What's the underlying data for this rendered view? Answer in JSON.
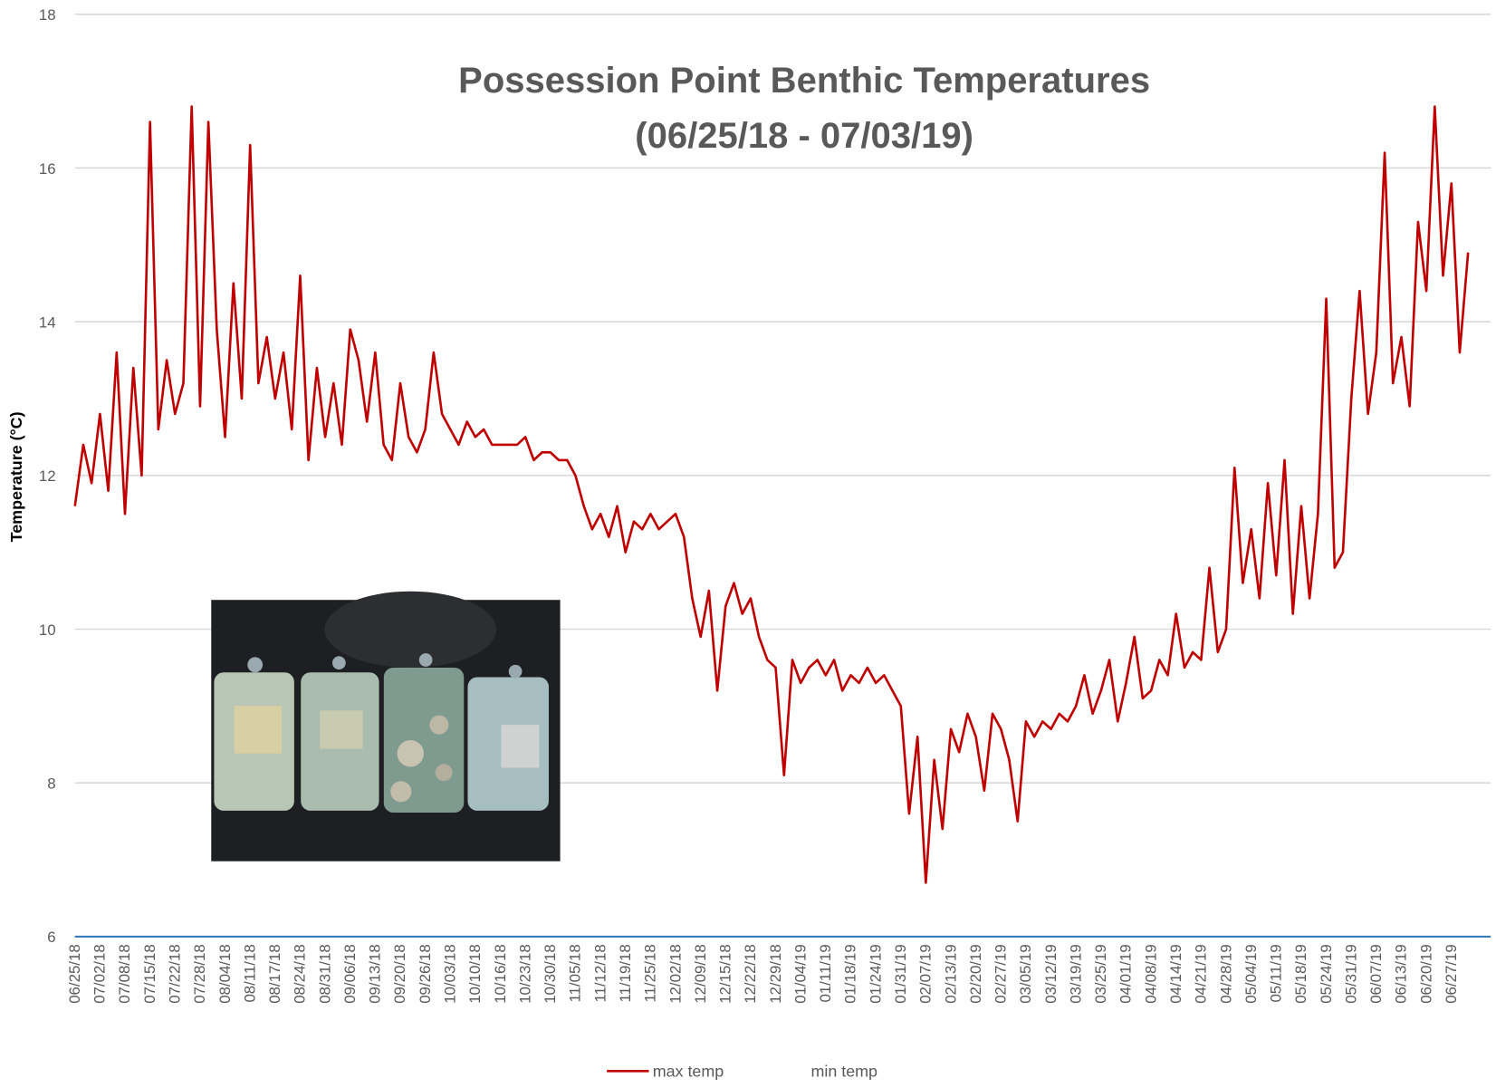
{
  "chart_data": {
    "type": "line",
    "title": "Possession Point Benthic Temperatures",
    "subtitle": "(06/25/18 - 07/03/19)",
    "y_label": "Temperature (°C)",
    "categories": [
      "06/25/18",
      null,
      null,
      "07/02/18",
      null,
      null,
      "07/08/18",
      null,
      null,
      "07/15/18",
      null,
      null,
      "07/22/18",
      null,
      null,
      "07/28/18",
      null,
      null,
      "08/04/18",
      null,
      null,
      "08/11/18",
      null,
      null,
      "08/17/18",
      null,
      null,
      "08/24/18",
      null,
      null,
      "08/31/18",
      null,
      null,
      "09/06/18",
      null,
      null,
      "09/13/18",
      null,
      null,
      "09/20/18",
      null,
      null,
      "09/26/18",
      null,
      null,
      "10/03/18",
      null,
      null,
      "10/10/18",
      null,
      null,
      "10/16/18",
      null,
      null,
      "10/23/18",
      null,
      null,
      "10/30/18",
      null,
      null,
      "11/05/18",
      null,
      null,
      "11/12/18",
      null,
      null,
      "11/19/18",
      null,
      null,
      "11/25/18",
      null,
      null,
      "12/02/18",
      null,
      null,
      "12/09/18",
      null,
      null,
      "12/15/18",
      null,
      null,
      "12/22/18",
      null,
      null,
      "12/29/18",
      null,
      null,
      "01/04/19",
      null,
      null,
      "01/11/19",
      null,
      null,
      "01/18/19",
      null,
      null,
      "01/24/19",
      null,
      null,
      "01/31/19",
      null,
      null,
      "02/07/19",
      null,
      null,
      "02/13/19",
      null,
      null,
      "02/20/19",
      null,
      null,
      "02/27/19",
      null,
      null,
      "03/05/19",
      null,
      null,
      "03/12/19",
      null,
      null,
      "03/19/19",
      null,
      null,
      "03/25/19",
      null,
      null,
      "04/01/19",
      null,
      null,
      "04/08/19",
      null,
      null,
      "04/14/19",
      null,
      null,
      "04/21/19",
      null,
      null,
      "04/28/19",
      null,
      null,
      "05/04/19",
      null,
      null,
      "05/11/19",
      null,
      null,
      "05/18/19",
      null,
      null,
      "05/24/19",
      null,
      null,
      "05/31/19",
      null,
      null,
      "06/07/19",
      null,
      null,
      "06/13/19",
      null,
      null,
      "06/20/19",
      null,
      null,
      "06/27/19",
      null,
      null
    ],
    "series": [
      {
        "name": "max temp",
        "color": "#c00000",
        "values": [
          11.6,
          12.4,
          11.9,
          12.8,
          11.8,
          13.6,
          11.5,
          13.4,
          12.0,
          16.6,
          12.6,
          13.5,
          12.8,
          13.2,
          16.8,
          12.9,
          16.6,
          13.9,
          12.5,
          14.5,
          13.0,
          16.3,
          13.2,
          13.8,
          13.0,
          13.6,
          12.6,
          14.6,
          12.2,
          13.4,
          12.5,
          13.2,
          12.4,
          13.9,
          13.5,
          12.7,
          13.6,
          12.4,
          12.2,
          13.2,
          12.5,
          12.3,
          12.6,
          13.6,
          12.8,
          12.6,
          12.4,
          12.7,
          12.5,
          12.6,
          12.4,
          12.4,
          12.4,
          12.4,
          12.5,
          12.2,
          12.3,
          12.3,
          12.2,
          12.2,
          12.0,
          11.6,
          11.3,
          11.5,
          11.2,
          11.6,
          11.0,
          11.4,
          11.3,
          11.5,
          11.3,
          11.4,
          11.5,
          11.2,
          10.4,
          9.9,
          10.5,
          9.2,
          10.3,
          10.6,
          10.2,
          10.4,
          9.9,
          9.6,
          9.5,
          8.1,
          9.6,
          9.3,
          9.5,
          9.6,
          9.4,
          9.6,
          9.2,
          9.4,
          9.3,
          9.5,
          9.3,
          9.4,
          9.2,
          9.0,
          7.6,
          8.6,
          6.7,
          8.3,
          7.4,
          8.7,
          8.4,
          8.9,
          8.6,
          7.9,
          8.9,
          8.7,
          8.3,
          7.5,
          8.8,
          8.6,
          8.8,
          8.7,
          8.9,
          8.8,
          9.0,
          9.4,
          8.9,
          9.2,
          9.6,
          8.8,
          9.3,
          9.9,
          9.1,
          9.2,
          9.6,
          9.4,
          10.2,
          9.5,
          9.7,
          9.6,
          10.8,
          9.7,
          10.0,
          12.1,
          10.6,
          11.3,
          10.4,
          11.9,
          10.7,
          12.2,
          10.2,
          11.6,
          10.4,
          11.5,
          14.3,
          10.8,
          11.0,
          13.0,
          14.4,
          12.8,
          13.6,
          16.2,
          13.2,
          13.8,
          12.9,
          15.3,
          14.4,
          16.8,
          14.6,
          15.8,
          13.6,
          14.9
        ]
      },
      {
        "name": "min temp",
        "color": "#ffffff"
      }
    ],
    "ylim": [
      6,
      18
    ],
    "yticks": [
      6,
      8,
      10,
      12,
      14,
      16,
      18
    ],
    "grid": true
  }
}
